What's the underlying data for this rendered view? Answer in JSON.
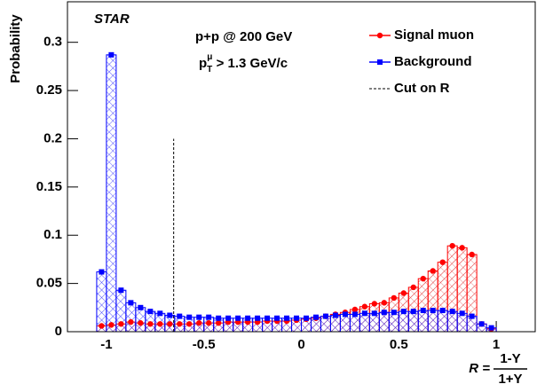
{
  "chart_data": {
    "type": "histogram",
    "annotations": {
      "experiment": "STAR",
      "system": "p+p @ 200 GeV",
      "cut_text": {
        "base": "p",
        "sub": "T",
        "sup": "μ",
        "rest": " > 1.3 GeV/c"
      }
    },
    "ylabel": "Probability",
    "xlabel": {
      "lhs": "R =",
      "numerator": "1-Y",
      "denominator": "1+Y"
    },
    "bins": [
      -1.05,
      -1.0,
      -0.95,
      -0.9,
      -0.85,
      -0.8,
      -0.75,
      -0.7,
      -0.65,
      -0.6,
      -0.55,
      -0.5,
      -0.45,
      -0.4,
      -0.35,
      -0.3,
      -0.25,
      -0.2,
      -0.15,
      -0.1,
      -0.05,
      0,
      0.05,
      0.1,
      0.15,
      0.2,
      0.25,
      0.3,
      0.35,
      0.4,
      0.45,
      0.5,
      0.55,
      0.6,
      0.65,
      0.7,
      0.75,
      0.8,
      0.85,
      0.9,
      0.95,
      1.0
    ],
    "series": [
      {
        "name": "Signal muon",
        "color": "#ff0000",
        "marker": "circle",
        "values": [
          0.006,
          0.007,
          0.008,
          0.01,
          0.009,
          0.008,
          0.008,
          0.008,
          0.008,
          0.008,
          0.009,
          0.009,
          0.009,
          0.01,
          0.01,
          0.01,
          0.01,
          0.011,
          0.011,
          0.011,
          0.012,
          0.013,
          0.014,
          0.016,
          0.018,
          0.02,
          0.023,
          0.026,
          0.029,
          0.03,
          0.035,
          0.04,
          0.046,
          0.055,
          0.063,
          0.072,
          0.089,
          0.087,
          0.08,
          0.008,
          0.003
        ]
      },
      {
        "name": "Background",
        "color": "#0000ff",
        "marker": "square",
        "values": [
          0.062,
          0.287,
          0.043,
          0.03,
          0.025,
          0.021,
          0.019,
          0.017,
          0.016,
          0.015,
          0.015,
          0.015,
          0.014,
          0.014,
          0.014,
          0.014,
          0.014,
          0.014,
          0.014,
          0.014,
          0.014,
          0.014,
          0.015,
          0.016,
          0.017,
          0.018,
          0.018,
          0.019,
          0.019,
          0.02,
          0.02,
          0.021,
          0.021,
          0.022,
          0.022,
          0.022,
          0.021,
          0.019,
          0.016,
          0.008,
          0.004
        ]
      }
    ],
    "cut": {
      "name": "Cut on R",
      "x": -0.655,
      "top": 0.2
    },
    "xlim": [
      -1.2,
      1.2
    ],
    "ylim": [
      0,
      0.342
    ],
    "xticks": [
      -1,
      -0.5,
      0,
      0.5,
      1
    ],
    "yticks": [
      0,
      0.05,
      0.1,
      0.15,
      0.2,
      0.25,
      0.3
    ]
  }
}
